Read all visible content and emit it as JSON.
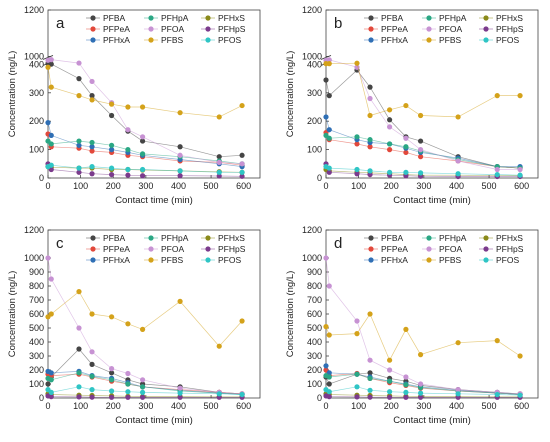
{
  "chart_data": [
    {
      "type": "line",
      "panel_label": "a",
      "xlabel": "Contact time (min)",
      "ylabel": "Concentration (ng/L)",
      "xlim": [
        0,
        650
      ],
      "ylim": [
        0,
        1200
      ],
      "xticks": [
        0,
        100,
        200,
        300,
        400,
        500,
        600
      ],
      "yticks": [
        0,
        100,
        200,
        300,
        400,
        1000,
        1200
      ],
      "axis_break": true,
      "series": [
        {
          "name": "PFBA",
          "color": "#454545",
          "x": [
            0,
            10,
            95,
            135,
            195,
            245,
            290,
            405,
            525,
            595
          ],
          "y": [
            470,
            420,
            350,
            290,
            220,
            165,
            130,
            110,
            75,
            80
          ]
        },
        {
          "name": "PFPeA",
          "color": "#e2483b",
          "x": [
            0,
            10,
            95,
            135,
            195,
            245,
            290,
            405,
            525,
            595
          ],
          "y": [
            155,
            110,
            105,
            95,
            90,
            80,
            75,
            60,
            55,
            45
          ]
        },
        {
          "name": "PFHxA",
          "color": "#2f6fb5",
          "x": [
            0,
            10,
            95,
            135,
            195,
            245,
            290,
            405,
            525,
            595
          ],
          "y": [
            195,
            150,
            115,
            110,
            100,
            90,
            80,
            65,
            50,
            40
          ]
        },
        {
          "name": "PFHpA",
          "color": "#2aa784",
          "x": [
            0,
            10,
            95,
            135,
            195,
            245,
            290,
            405,
            525,
            595
          ],
          "y": [
            130,
            120,
            130,
            125,
            115,
            100,
            85,
            75,
            60,
            50
          ]
        },
        {
          "name": "PFOA",
          "color": "#c792d3",
          "x": [
            0,
            10,
            95,
            135,
            195,
            245,
            290,
            405,
            525,
            595
          ],
          "y": [
            705,
            760,
            500,
            340,
            265,
            170,
            145,
            80,
            55,
            50
          ]
        },
        {
          "name": "PFBS",
          "color": "#d4a21a",
          "x": [
            0,
            10,
            95,
            135,
            195,
            245,
            290,
            405,
            525,
            595
          ],
          "y": [
            390,
            320,
            290,
            275,
            260,
            250,
            250,
            230,
            215,
            255
          ]
        },
        {
          "name": "PFHxS",
          "color": "#8a8a1a",
          "x": [
            0,
            10,
            95,
            135,
            195,
            245,
            290,
            405,
            525,
            595
          ],
          "y": [
            40,
            38,
            35,
            35,
            30,
            30,
            28,
            25,
            22,
            20
          ]
        },
        {
          "name": "PFHpS",
          "color": "#7b3b8c",
          "x": [
            0,
            10,
            95,
            135,
            195,
            245,
            290,
            405,
            525,
            595
          ],
          "y": [
            50,
            30,
            20,
            15,
            12,
            10,
            8,
            8,
            7,
            6
          ]
        },
        {
          "name": "PFOS",
          "color": "#2fc5c5",
          "x": [
            0,
            10,
            95,
            135,
            195,
            245,
            290,
            405,
            525,
            595
          ],
          "y": [
            40,
            45,
            35,
            40,
            35,
            30,
            30,
            25,
            20,
            20
          ]
        }
      ]
    },
    {
      "type": "line",
      "panel_label": "b",
      "xlabel": "Contact time (min)",
      "ylabel": "Concentration (ng/L)",
      "xlim": [
        0,
        650
      ],
      "ylim": [
        0,
        1200
      ],
      "xticks": [
        0,
        100,
        200,
        300,
        400,
        500,
        600
      ],
      "yticks": [
        0,
        100,
        200,
        300,
        400,
        1000,
        1200
      ],
      "axis_break": true,
      "series": [
        {
          "name": "PFBA",
          "color": "#454545",
          "x": [
            0,
            10,
            95,
            135,
            195,
            245,
            290,
            405,
            525,
            595
          ],
          "y": [
            345,
            290,
            380,
            320,
            205,
            145,
            130,
            75,
            40,
            35
          ]
        },
        {
          "name": "PFPeA",
          "color": "#e2483b",
          "x": [
            0,
            10,
            95,
            135,
            195,
            245,
            290,
            405,
            525,
            595
          ],
          "y": [
            160,
            135,
            120,
            110,
            100,
            90,
            75,
            60,
            40,
            35
          ]
        },
        {
          "name": "PFHxA",
          "color": "#2f6fb5",
          "x": [
            0,
            10,
            95,
            135,
            195,
            245,
            290,
            405,
            525,
            595
          ],
          "y": [
            215,
            170,
            135,
            125,
            120,
            105,
            90,
            70,
            40,
            40
          ]
        },
        {
          "name": "PFHpA",
          "color": "#2aa784",
          "x": [
            0,
            10,
            95,
            135,
            195,
            245,
            290,
            405,
            525,
            595
          ],
          "y": [
            150,
            140,
            145,
            135,
            120,
            110,
            95,
            65,
            40,
            35
          ]
        },
        {
          "name": "PFOA",
          "color": "#c792d3",
          "x": [
            0,
            10,
            95,
            135,
            195,
            245,
            290,
            405,
            525,
            595
          ],
          "y": [
            700,
            740,
            390,
            280,
            180,
            140,
            100,
            60,
            30,
            30
          ]
        },
        {
          "name": "PFBS",
          "color": "#d4a21a",
          "x": [
            0,
            10,
            95,
            135,
            195,
            245,
            290,
            405,
            525,
            595
          ],
          "y": [
            460,
            460,
            490,
            220,
            240,
            255,
            220,
            215,
            290,
            290
          ]
        },
        {
          "name": "PFHxS",
          "color": "#8a8a1a",
          "x": [
            0,
            10,
            95,
            135,
            195,
            245,
            290,
            405,
            525,
            595
          ],
          "y": [
            30,
            25,
            20,
            18,
            15,
            12,
            10,
            10,
            8,
            8
          ]
        },
        {
          "name": "PFHpS",
          "color": "#7b3b8c",
          "x": [
            0,
            10,
            95,
            135,
            195,
            245,
            290,
            405,
            525,
            595
          ],
          "y": [
            50,
            20,
            15,
            12,
            10,
            8,
            6,
            5,
            5,
            5
          ]
        },
        {
          "name": "PFOS",
          "color": "#2fc5c5",
          "x": [
            0,
            10,
            95,
            135,
            195,
            245,
            290,
            405,
            525,
            595
          ],
          "y": [
            40,
            35,
            30,
            25,
            20,
            20,
            18,
            15,
            12,
            10
          ]
        }
      ]
    },
    {
      "type": "line",
      "panel_label": "c",
      "xlabel": "Contact time (min)",
      "ylabel": "Concentration (ng/L)",
      "xlim": [
        0,
        650
      ],
      "ylim": [
        0,
        1200
      ],
      "xticks": [
        0,
        100,
        200,
        300,
        400,
        500,
        600
      ],
      "yticks": [
        0,
        100,
        200,
        300,
        400,
        500,
        600,
        700,
        800,
        900,
        1000,
        1200
      ],
      "axis_break": false,
      "series": [
        {
          "name": "PFBA",
          "color": "#454545",
          "x": [
            0,
            10,
            95,
            135,
            195,
            245,
            290,
            405,
            525,
            595
          ],
          "y": [
            100,
            150,
            350,
            240,
            180,
            130,
            100,
            80,
            40,
            30
          ]
        },
        {
          "name": "PFPeA",
          "color": "#e2483b",
          "x": [
            0,
            10,
            95,
            135,
            195,
            245,
            290,
            405,
            525,
            595
          ],
          "y": [
            170,
            160,
            170,
            150,
            120,
            100,
            80,
            60,
            40,
            30
          ]
        },
        {
          "name": "PFHxA",
          "color": "#2f6fb5",
          "x": [
            0,
            10,
            95,
            135,
            195,
            245,
            290,
            405,
            525,
            595
          ],
          "y": [
            190,
            180,
            190,
            160,
            140,
            110,
            80,
            55,
            35,
            25
          ]
        },
        {
          "name": "PFHpA",
          "color": "#2aa784",
          "x": [
            0,
            10,
            95,
            135,
            195,
            245,
            290,
            405,
            525,
            595
          ],
          "y": [
            140,
            130,
            180,
            155,
            130,
            100,
            80,
            50,
            35,
            25
          ]
        },
        {
          "name": "PFOA",
          "color": "#c792d3",
          "x": [
            0,
            10,
            95,
            135,
            195,
            245,
            290,
            405,
            525,
            595
          ],
          "y": [
            1000,
            850,
            500,
            330,
            210,
            175,
            130,
            70,
            40,
            30
          ]
        },
        {
          "name": "PFBS",
          "color": "#d4a21a",
          "x": [
            0,
            10,
            95,
            135,
            195,
            245,
            290,
            405,
            525,
            595
          ],
          "y": [
            580,
            600,
            760,
            600,
            580,
            530,
            490,
            690,
            370,
            550
          ]
        },
        {
          "name": "PFHxS",
          "color": "#8a8a1a",
          "x": [
            0,
            10,
            95,
            135,
            195,
            245,
            290,
            405,
            525,
            595
          ],
          "y": [
            30,
            25,
            20,
            18,
            15,
            12,
            10,
            10,
            8,
            8
          ]
        },
        {
          "name": "PFHpS",
          "color": "#7b3b8c",
          "x": [
            0,
            10,
            95,
            135,
            195,
            245,
            290,
            405,
            525,
            595
          ],
          "y": [
            15,
            10,
            8,
            6,
            5,
            5,
            5,
            5,
            5,
            5
          ]
        },
        {
          "name": "PFOS",
          "color": "#2fc5c5",
          "x": [
            0,
            10,
            95,
            135,
            195,
            245,
            290,
            405,
            525,
            595
          ],
          "y": [
            60,
            40,
            80,
            60,
            50,
            45,
            40,
            35,
            30,
            25
          ]
        }
      ]
    },
    {
      "type": "line",
      "panel_label": "d",
      "xlabel": "Contact time (min)",
      "ylabel": "Concentration (ng/L)",
      "xlim": [
        0,
        650
      ],
      "ylim": [
        0,
        1200
      ],
      "xticks": [
        0,
        100,
        200,
        300,
        400,
        500,
        600
      ],
      "yticks": [
        0,
        100,
        200,
        300,
        400,
        500,
        600,
        700,
        800,
        900,
        1000,
        1200
      ],
      "axis_break": false,
      "series": [
        {
          "name": "PFBA",
          "color": "#454545",
          "x": [
            0,
            10,
            95,
            135,
            195,
            245,
            290,
            405,
            525,
            595
          ],
          "y": [
            150,
            100,
            170,
            180,
            140,
            120,
            90,
            60,
            40,
            30
          ]
        },
        {
          "name": "PFPeA",
          "color": "#e2483b",
          "x": [
            0,
            10,
            95,
            135,
            195,
            245,
            290,
            405,
            525,
            595
          ],
          "y": [
            200,
            160,
            175,
            140,
            110,
            90,
            70,
            50,
            35,
            25
          ]
        },
        {
          "name": "PFHxA",
          "color": "#2f6fb5",
          "x": [
            0,
            10,
            95,
            135,
            195,
            245,
            290,
            405,
            525,
            595
          ],
          "y": [
            230,
            180,
            170,
            150,
            120,
            100,
            80,
            55,
            35,
            25
          ]
        },
        {
          "name": "PFHpA",
          "color": "#2aa784",
          "x": [
            0,
            10,
            95,
            135,
            195,
            245,
            290,
            405,
            525,
            595
          ],
          "y": [
            160,
            150,
            170,
            140,
            120,
            95,
            75,
            50,
            35,
            25
          ]
        },
        {
          "name": "PFOA",
          "color": "#c792d3",
          "x": [
            0,
            10,
            95,
            135,
            195,
            245,
            290,
            405,
            525,
            595
          ],
          "y": [
            1000,
            800,
            550,
            270,
            200,
            150,
            100,
            60,
            40,
            30
          ]
        },
        {
          "name": "PFBS",
          "color": "#d4a21a",
          "x": [
            0,
            10,
            95,
            135,
            195,
            245,
            290,
            405,
            525,
            595
          ],
          "y": [
            510,
            450,
            460,
            600,
            270,
            490,
            310,
            395,
            410,
            300
          ]
        },
        {
          "name": "PFHxS",
          "color": "#8a8a1a",
          "x": [
            0,
            10,
            95,
            135,
            195,
            245,
            290,
            405,
            525,
            595
          ],
          "y": [
            30,
            25,
            20,
            18,
            15,
            12,
            10,
            10,
            8,
            8
          ]
        },
        {
          "name": "PFHpS",
          "color": "#7b3b8c",
          "x": [
            0,
            10,
            95,
            135,
            195,
            245,
            290,
            405,
            525,
            595
          ],
          "y": [
            15,
            10,
            8,
            6,
            5,
            5,
            5,
            5,
            5,
            5
          ]
        },
        {
          "name": "PFOS",
          "color": "#2fc5c5",
          "x": [
            0,
            10,
            95,
            135,
            195,
            245,
            290,
            405,
            525,
            595
          ],
          "y": [
            60,
            45,
            80,
            55,
            45,
            40,
            35,
            30,
            25,
            20
          ]
        }
      ]
    }
  ]
}
